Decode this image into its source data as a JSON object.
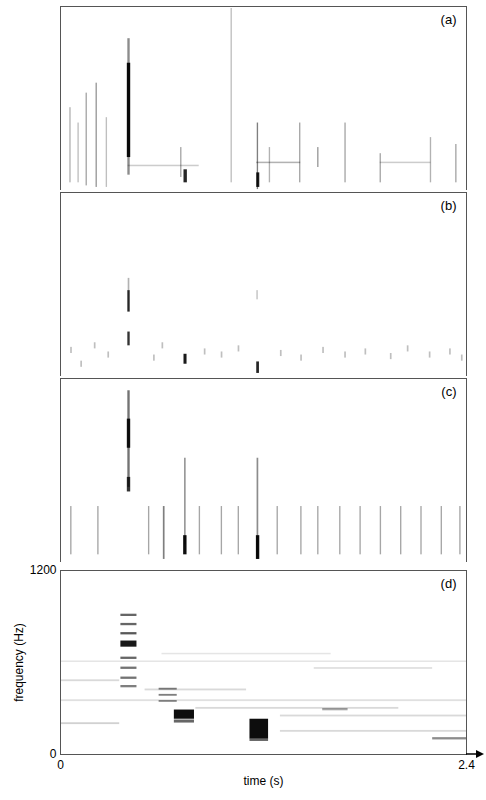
{
  "chart_data": [
    {
      "type": "heatmap",
      "title": "(a)",
      "xlim": [
        0,
        2.4
      ],
      "ylim": [
        0,
        1200
      ],
      "tick_labels": false,
      "cells": [
        [
          0.055,
          0.063,
          50,
          540,
          0.3
        ],
        [
          0.103,
          0.111,
          50,
          440,
          0.25
        ],
        [
          0.151,
          0.159,
          30,
          635,
          0.35
        ],
        [
          0.21,
          0.218,
          20,
          700,
          0.4
        ],
        [
          0.27,
          0.278,
          20,
          475,
          0.25
        ],
        [
          0.398,
          0.412,
          100,
          990,
          0.45
        ],
        [
          0.395,
          0.415,
          215,
          830,
          0.95
        ],
        [
          0.4,
          0.82,
          155,
          165,
          0.2
        ],
        [
          0.71,
          0.718,
          85,
          280,
          0.35
        ],
        [
          0.73,
          0.75,
          50,
          135,
          0.85
        ],
        [
          1.008,
          1.016,
          50,
          1187,
          0.25
        ],
        [
          1.163,
          1.171,
          6,
          440,
          0.5
        ],
        [
          1.16,
          1.178,
          20,
          115,
          0.9
        ],
        [
          1.234,
          1.242,
          50,
          280,
          0.3
        ],
        [
          1.16,
          1.42,
          175,
          185,
          0.3
        ],
        [
          1.413,
          1.421,
          50,
          440,
          0.35
        ],
        [
          1.52,
          1.528,
          150,
          280,
          0.4
        ],
        [
          1.681,
          1.689,
          50,
          440,
          0.35
        ],
        [
          1.889,
          1.897,
          50,
          240,
          0.35
        ],
        [
          1.89,
          2.19,
          175,
          185,
          0.2
        ],
        [
          2.186,
          2.194,
          50,
          345,
          0.3
        ],
        [
          2.336,
          2.344,
          50,
          300,
          0.35
        ]
      ]
    },
    {
      "type": "heatmap",
      "title": "(b)",
      "xlim": [
        0,
        2.4
      ],
      "ylim": [
        0,
        1200
      ],
      "tick_labels": false,
      "cells": [
        [
          0.398,
          0.412,
          420,
          560,
          0.85
        ],
        [
          0.398,
          0.412,
          200,
          290,
          0.8
        ],
        [
          0.4,
          0.41,
          560,
          640,
          0.3
        ],
        [
          0.73,
          0.748,
          80,
          145,
          0.9
        ],
        [
          1.16,
          1.176,
          20,
          95,
          0.85
        ],
        [
          1.16,
          1.17,
          500,
          560,
          0.2
        ],
        [
          0.06,
          0.07,
          150,
          190,
          0.25
        ],
        [
          0.12,
          0.13,
          60,
          100,
          0.25
        ],
        [
          0.2,
          0.21,
          180,
          220,
          0.25
        ],
        [
          0.28,
          0.29,
          120,
          160,
          0.25
        ],
        [
          0.55,
          0.56,
          100,
          140,
          0.25
        ],
        [
          0.6,
          0.61,
          180,
          220,
          0.25
        ],
        [
          0.85,
          0.86,
          140,
          180,
          0.25
        ],
        [
          0.95,
          0.96,
          120,
          160,
          0.25
        ],
        [
          1.05,
          1.06,
          160,
          200,
          0.25
        ],
        [
          1.3,
          1.31,
          130,
          170,
          0.25
        ],
        [
          1.42,
          1.43,
          100,
          140,
          0.25
        ],
        [
          1.55,
          1.56,
          150,
          190,
          0.25
        ],
        [
          1.68,
          1.69,
          120,
          160,
          0.25
        ],
        [
          1.8,
          1.81,
          140,
          180,
          0.25
        ],
        [
          1.95,
          1.96,
          110,
          150,
          0.25
        ],
        [
          2.05,
          2.06,
          160,
          200,
          0.25
        ],
        [
          2.18,
          2.19,
          120,
          160,
          0.25
        ],
        [
          2.3,
          2.31,
          140,
          180,
          0.25
        ],
        [
          2.37,
          2.38,
          100,
          140,
          0.25
        ]
      ]
    },
    {
      "type": "heatmap",
      "title": "(c)",
      "xlim": [
        0,
        2.4
      ],
      "ylim": [
        0,
        1200
      ],
      "tick_labels": false,
      "cells": [
        [
          0.398,
          0.412,
          490,
          1120,
          0.55
        ],
        [
          0.395,
          0.415,
          745,
          935,
          0.9
        ],
        [
          0.395,
          0.415,
          460,
          555,
          0.8
        ],
        [
          0.608,
          0.618,
          20,
          365,
          0.5
        ],
        [
          0.733,
          0.743,
          115,
          680,
          0.4
        ],
        [
          0.728,
          0.748,
          50,
          175,
          0.95
        ],
        [
          1.162,
          1.172,
          20,
          680,
          0.45
        ],
        [
          1.158,
          1.178,
          20,
          175,
          0.95
        ],
        [
          0.06,
          0.068,
          50,
          365,
          0.35
        ],
        [
          0.22,
          0.228,
          50,
          365,
          0.35
        ],
        [
          0.52,
          0.528,
          50,
          365,
          0.35
        ],
        [
          0.82,
          0.828,
          50,
          365,
          0.35
        ],
        [
          0.95,
          0.958,
          50,
          365,
          0.35
        ],
        [
          1.05,
          1.058,
          50,
          365,
          0.35
        ],
        [
          1.28,
          1.288,
          50,
          365,
          0.35
        ],
        [
          1.42,
          1.428,
          50,
          365,
          0.35
        ],
        [
          1.52,
          1.528,
          50,
          365,
          0.35
        ],
        [
          1.65,
          1.658,
          50,
          365,
          0.35
        ],
        [
          1.77,
          1.778,
          50,
          365,
          0.35
        ],
        [
          1.89,
          1.898,
          50,
          365,
          0.35
        ],
        [
          2.01,
          2.018,
          50,
          365,
          0.35
        ],
        [
          2.13,
          2.138,
          50,
          365,
          0.35
        ],
        [
          2.25,
          2.258,
          50,
          365,
          0.35
        ],
        [
          2.36,
          2.368,
          50,
          365,
          0.35
        ]
      ]
    },
    {
      "type": "heatmap",
      "title": "(d)",
      "x_label": "time (s)",
      "y_label": "frequency (Hz)",
      "xlim": [
        0,
        2.4
      ],
      "ylim": [
        0,
        1200
      ],
      "xticks": [
        0,
        2.4
      ],
      "yticks": [
        0,
        1200
      ],
      "cells": [
        [
          0.0,
          0.35,
          475,
          487,
          0.15
        ],
        [
          0.5,
          1.1,
          415,
          427,
          0.15
        ],
        [
          0.0,
          2.4,
          345,
          357,
          0.12
        ],
        [
          0.8,
          2.0,
          295,
          307,
          0.15
        ],
        [
          1.3,
          2.4,
          245,
          257,
          0.15
        ],
        [
          0.0,
          0.35,
          195,
          207,
          0.18
        ],
        [
          1.3,
          2.4,
          145,
          157,
          0.15
        ],
        [
          2.2,
          2.4,
          95,
          110,
          0.45
        ],
        [
          1.5,
          2.2,
          555,
          567,
          0.12
        ],
        [
          1.55,
          1.7,
          285,
          300,
          0.35
        ],
        [
          0.0,
          2.4,
          600,
          610,
          0.1
        ],
        [
          0.6,
          1.6,
          650,
          660,
          0.1
        ],
        [
          0.357,
          0.452,
          900,
          915,
          0.6
        ],
        [
          0.357,
          0.452,
          840,
          855,
          0.6
        ],
        [
          0.357,
          0.452,
          780,
          795,
          0.65
        ],
        [
          0.357,
          0.452,
          700,
          740,
          0.9
        ],
        [
          0.357,
          0.452,
          620,
          635,
          0.6
        ],
        [
          0.357,
          0.452,
          555,
          570,
          0.55
        ],
        [
          0.357,
          0.452,
          490,
          505,
          0.55
        ],
        [
          0.357,
          0.452,
          435,
          450,
          0.5
        ],
        [
          0.583,
          0.69,
          420,
          432,
          0.5
        ],
        [
          0.583,
          0.69,
          380,
          392,
          0.5
        ],
        [
          0.583,
          0.69,
          340,
          352,
          0.45
        ],
        [
          0.673,
          0.792,
          230,
          290,
          0.95
        ],
        [
          0.673,
          0.792,
          205,
          225,
          0.6
        ],
        [
          1.12,
          1.23,
          100,
          230,
          0.95
        ],
        [
          1.12,
          1.23,
          85,
          100,
          0.6
        ]
      ]
    }
  ]
}
